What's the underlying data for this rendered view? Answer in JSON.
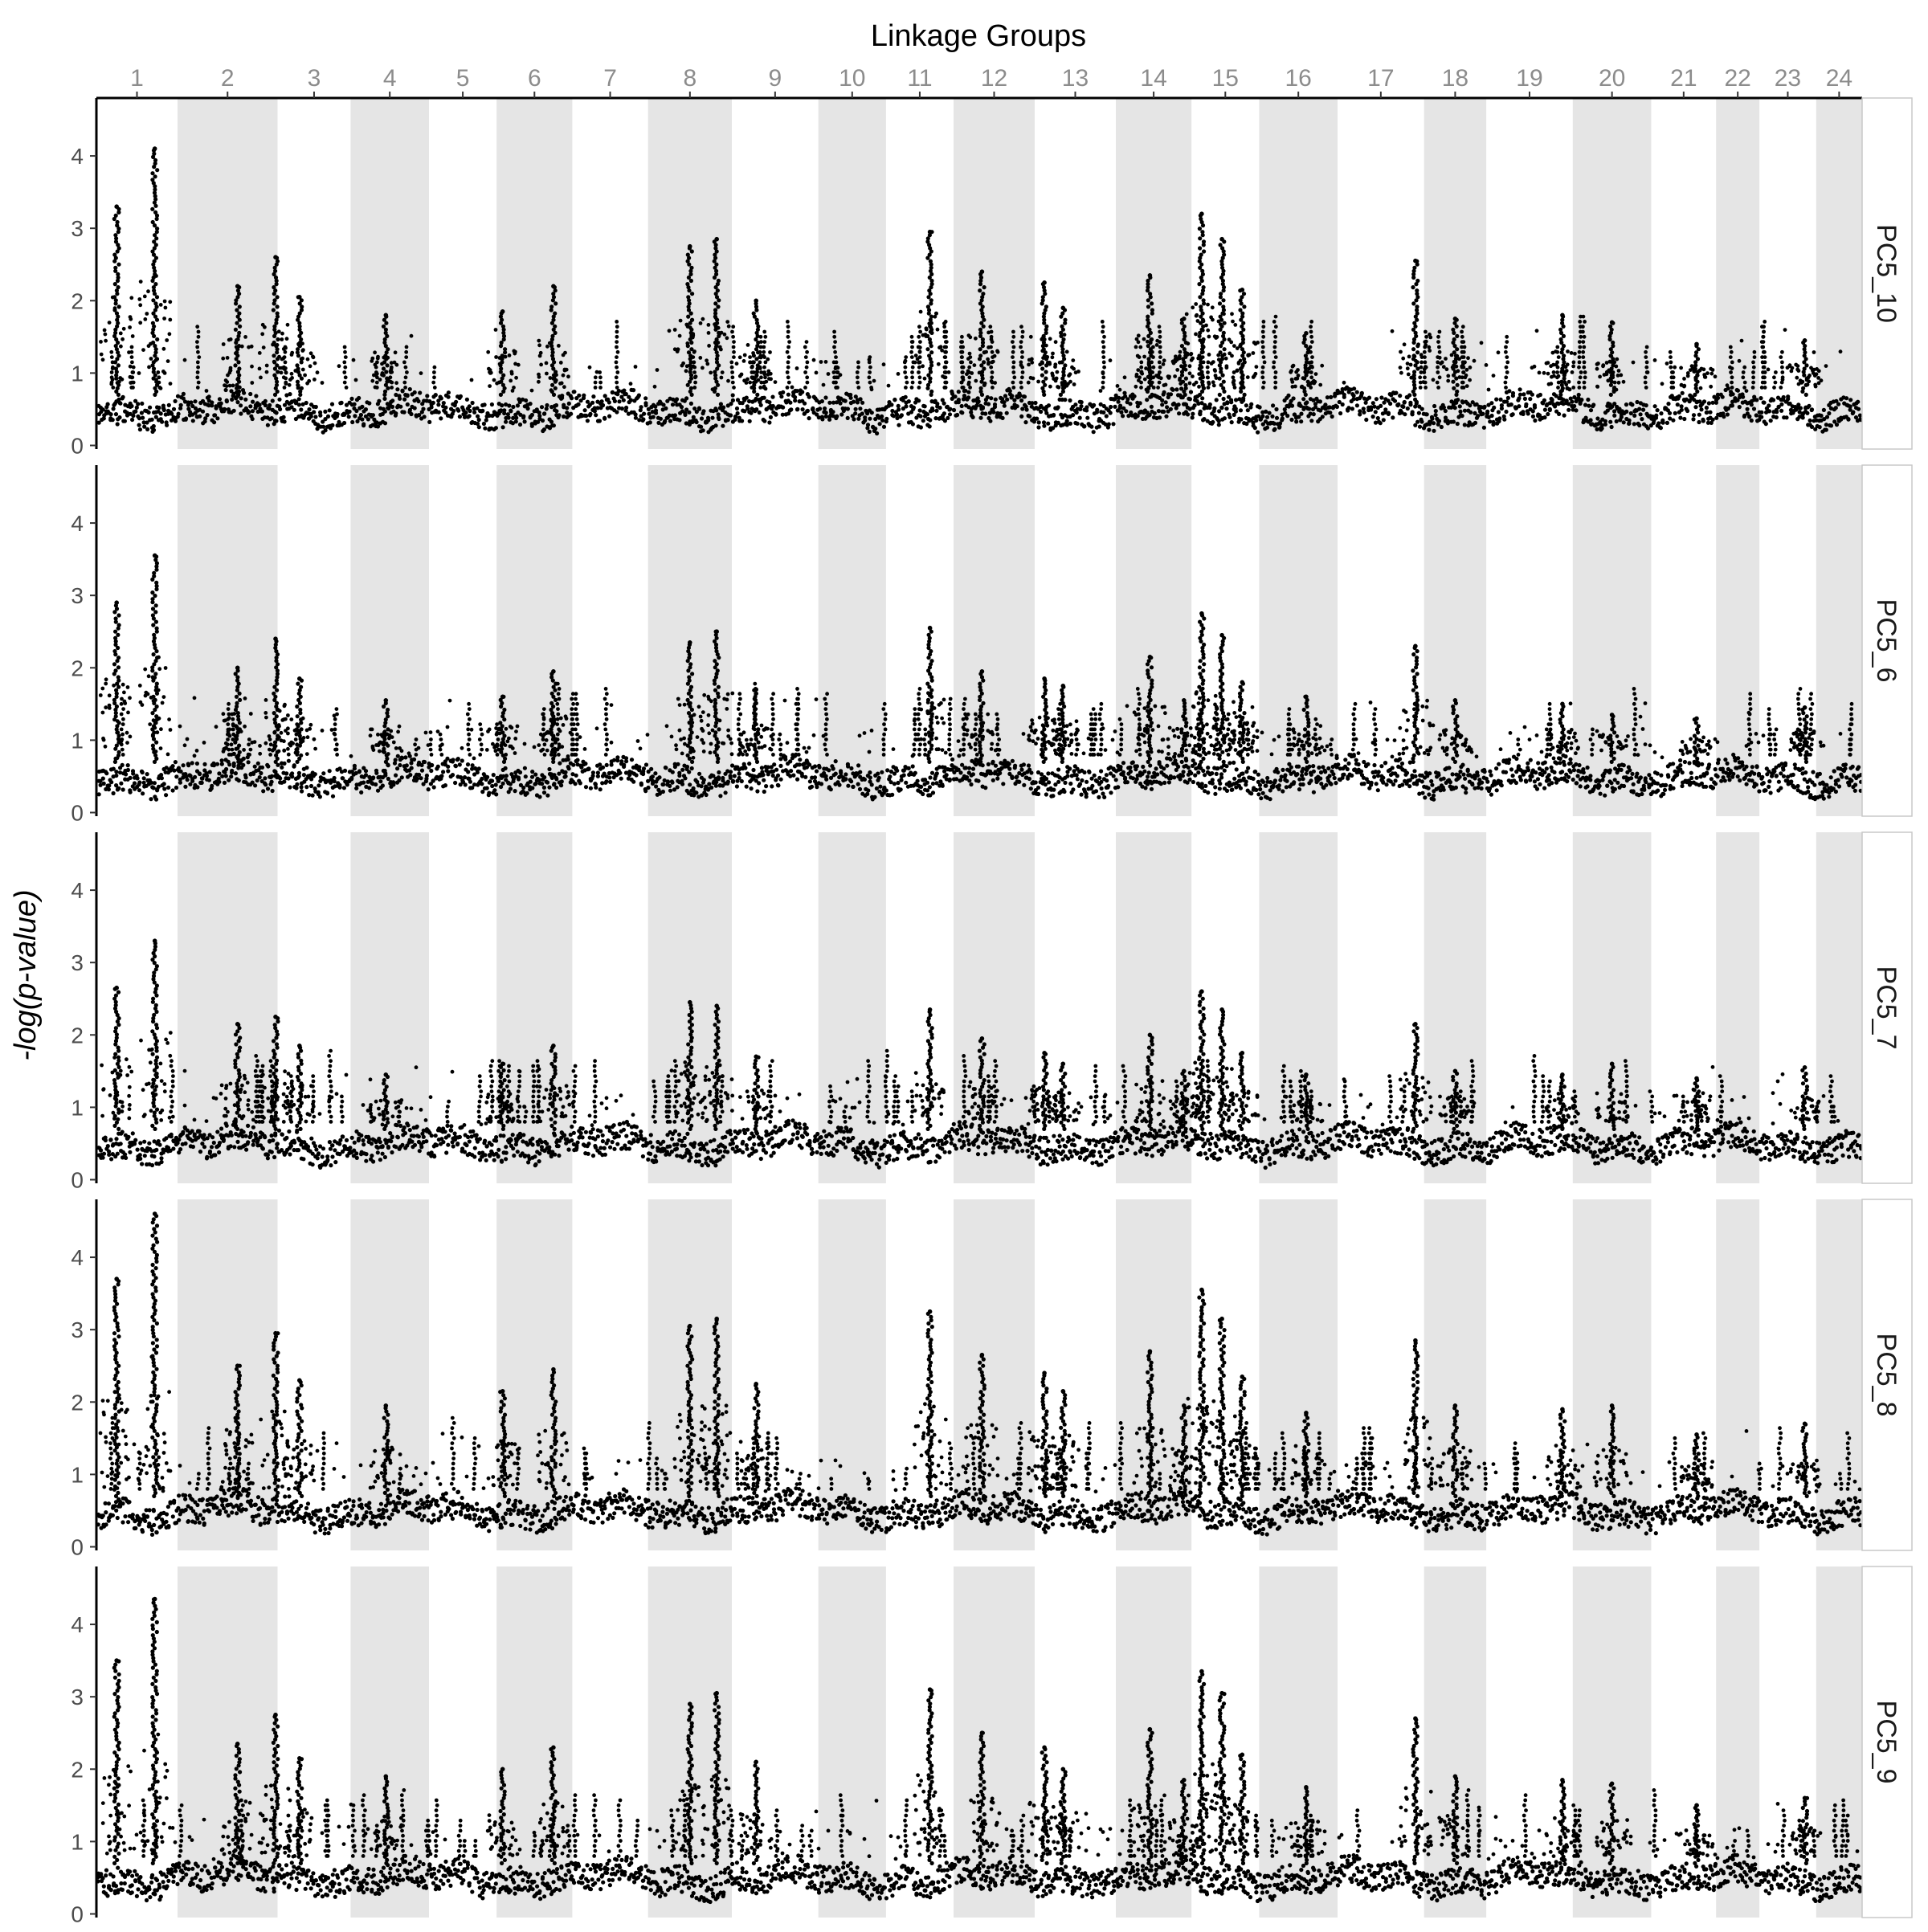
{
  "chart_data": {
    "type": "scatter",
    "title": "",
    "xlabel": "Linkage Groups",
    "ylabel": "-log(p-value)",
    "ylim": [
      -0.05,
      4.8
    ],
    "yticks": [
      0,
      1,
      2,
      3,
      4
    ],
    "grid": false,
    "legend": "none",
    "x_position": "top",
    "alternating_band_color": "#e5e5e5",
    "point_color": "#000000",
    "linkage_groups": [
      "1",
      "2",
      "3",
      "4",
      "5",
      "6",
      "7",
      "8",
      "9",
      "10",
      "11",
      "12",
      "13",
      "14",
      "15",
      "16",
      "17",
      "18",
      "19",
      "20",
      "21",
      "22",
      "23",
      "24"
    ],
    "group_relative_sizes": [
      1.5,
      1.85,
      1.35,
      1.45,
      1.25,
      1.4,
      1.4,
      1.55,
      1.6,
      1.25,
      1.25,
      1.5,
      1.5,
      1.4,
      1.25,
      1.45,
      1.6,
      1.15,
      1.6,
      1.45,
      1.2,
      0.8,
      1.05,
      0.85
    ],
    "baseline_min_value": 0.45,
    "peak_points": [
      {
        "group": "1",
        "pos": 0.25,
        "values": {
          "PC5_10": 3.3,
          "PC5_6": 2.9,
          "PC5_7": 2.65,
          "PC5_8": 3.7,
          "PC5_9": 3.5
        }
      },
      {
        "group": "1",
        "pos": 0.72,
        "values": {
          "PC5_10": 4.1,
          "PC5_6": 3.55,
          "PC5_7": 3.3,
          "PC5_8": 4.6,
          "PC5_9": 4.35
        }
      },
      {
        "group": "2",
        "pos": 0.6,
        "values": {
          "PC5_10": 2.2,
          "PC5_6": 2.0,
          "PC5_7": 2.15,
          "PC5_8": 2.5,
          "PC5_9": 2.35
        }
      },
      {
        "group": "2",
        "pos": 0.98,
        "values": {
          "PC5_10": 2.6,
          "PC5_6": 2.4,
          "PC5_7": 2.25,
          "PC5_8": 2.95,
          "PC5_9": 2.75
        }
      },
      {
        "group": "3",
        "pos": 0.3,
        "values": {
          "PC5_10": 2.05,
          "PC5_6": 1.85,
          "PC5_7": 1.85,
          "PC5_8": 2.3,
          "PC5_9": 2.15
        }
      },
      {
        "group": "4",
        "pos": 0.45,
        "values": {
          "PC5_10": 1.8,
          "PC5_6": 1.55,
          "PC5_7": 1.45,
          "PC5_8": 1.95,
          "PC5_9": 1.9
        }
      },
      {
        "group": "6",
        "pos": 0.08,
        "values": {
          "PC5_10": 1.85,
          "PC5_6": 1.6,
          "PC5_7": 1.6,
          "PC5_8": 2.15,
          "PC5_9": 2.0
        }
      },
      {
        "group": "6",
        "pos": 0.75,
        "values": {
          "PC5_10": 2.2,
          "PC5_6": 1.95,
          "PC5_7": 1.85,
          "PC5_8": 2.45,
          "PC5_9": 2.3
        }
      },
      {
        "group": "8",
        "pos": 0.5,
        "values": {
          "PC5_10": 2.75,
          "PC5_6": 2.35,
          "PC5_7": 2.45,
          "PC5_8": 3.05,
          "PC5_9": 2.9
        }
      },
      {
        "group": "8",
        "pos": 0.82,
        "values": {
          "PC5_10": 2.85,
          "PC5_6": 2.5,
          "PC5_7": 2.4,
          "PC5_8": 3.15,
          "PC5_9": 3.05
        }
      },
      {
        "group": "9",
        "pos": 0.28,
        "values": {
          "PC5_10": 2.0,
          "PC5_6": 1.7,
          "PC5_7": 1.7,
          "PC5_8": 2.25,
          "PC5_9": 2.1
        }
      },
      {
        "group": "11",
        "pos": 0.65,
        "values": {
          "PC5_10": 2.95,
          "PC5_6": 2.55,
          "PC5_7": 2.35,
          "PC5_8": 3.25,
          "PC5_9": 3.1
        }
      },
      {
        "group": "12",
        "pos": 0.35,
        "values": {
          "PC5_10": 2.4,
          "PC5_6": 1.95,
          "PC5_7": 1.95,
          "PC5_8": 2.65,
          "PC5_9": 2.5
        }
      },
      {
        "group": "13",
        "pos": 0.12,
        "values": {
          "PC5_10": 2.25,
          "PC5_6": 1.85,
          "PC5_7": 1.75,
          "PC5_8": 2.4,
          "PC5_9": 2.3
        }
      },
      {
        "group": "13",
        "pos": 0.35,
        "values": {
          "PC5_10": 1.9,
          "PC5_6": 1.75,
          "PC5_7": 1.6,
          "PC5_8": 2.15,
          "PC5_9": 2.0
        }
      },
      {
        "group": "14",
        "pos": 0.45,
        "values": {
          "PC5_10": 2.35,
          "PC5_6": 2.15,
          "PC5_7": 2.0,
          "PC5_8": 2.7,
          "PC5_9": 2.55
        }
      },
      {
        "group": "14",
        "pos": 0.9,
        "values": {
          "PC5_10": 1.75,
          "PC5_6": 1.55,
          "PC5_7": 1.5,
          "PC5_8": 1.95,
          "PC5_9": 1.85
        }
      },
      {
        "group": "15",
        "pos": 0.15,
        "values": {
          "PC5_10": 3.2,
          "PC5_6": 2.75,
          "PC5_7": 2.6,
          "PC5_8": 3.55,
          "PC5_9": 3.35
        }
      },
      {
        "group": "15",
        "pos": 0.45,
        "values": {
          "PC5_10": 2.85,
          "PC5_6": 2.45,
          "PC5_7": 2.35,
          "PC5_8": 3.15,
          "PC5_9": 3.05
        }
      },
      {
        "group": "15",
        "pos": 0.75,
        "values": {
          "PC5_10": 2.15,
          "PC5_6": 1.8,
          "PC5_7": 1.75,
          "PC5_8": 2.35,
          "PC5_9": 2.2
        }
      },
      {
        "group": "16",
        "pos": 0.6,
        "values": {
          "PC5_10": 1.55,
          "PC5_6": 1.6,
          "PC5_7": 1.45,
          "PC5_8": 1.85,
          "PC5_9": 1.75
        }
      },
      {
        "group": "17",
        "pos": 0.9,
        "values": {
          "PC5_10": 2.55,
          "PC5_6": 2.3,
          "PC5_7": 2.15,
          "PC5_8": 2.85,
          "PC5_9": 2.7
        }
      },
      {
        "group": "18",
        "pos": 0.5,
        "values": {
          "PC5_10": 1.75,
          "PC5_6": 1.55,
          "PC5_7": 1.5,
          "PC5_8": 1.95,
          "PC5_9": 1.9
        }
      },
      {
        "group": "19",
        "pos": 0.88,
        "values": {
          "PC5_10": 1.8,
          "PC5_6": 1.5,
          "PC5_7": 1.45,
          "PC5_8": 1.9,
          "PC5_9": 1.85
        }
      },
      {
        "group": "20",
        "pos": 0.5,
        "values": {
          "PC5_10": 1.7,
          "PC5_6": 1.35,
          "PC5_7": 1.6,
          "PC5_8": 1.95,
          "PC5_9": 1.8
        }
      },
      {
        "group": "21",
        "pos": 0.7,
        "values": {
          "PC5_10": 1.4,
          "PC5_6": 1.3,
          "PC5_7": 1.4,
          "PC5_8": 1.55,
          "PC5_9": 1.5
        }
      },
      {
        "group": "23",
        "pos": 0.8,
        "values": {
          "PC5_10": 1.45,
          "PC5_6": 1.45,
          "PC5_7": 1.55,
          "PC5_8": 1.7,
          "PC5_9": 1.6
        }
      }
    ],
    "panels": [
      "PC5_10",
      "PC5_6",
      "PC5_7",
      "PC5_8",
      "PC5_9"
    ]
  }
}
